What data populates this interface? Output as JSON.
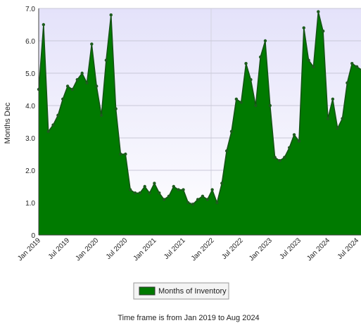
{
  "chart_data": {
    "type": "area",
    "y_label": "Months Dec",
    "caption": "Time frame is from Jan 2019 to Aug 2024",
    "categories": [
      "Jan 2019",
      null,
      null,
      null,
      null,
      null,
      "Jul 2019",
      null,
      null,
      null,
      null,
      null,
      "Jan 2020",
      null,
      null,
      null,
      null,
      null,
      "Jul 2020",
      null,
      null,
      null,
      null,
      null,
      "Jan 2021",
      null,
      null,
      null,
      null,
      null,
      "Jul 2021",
      null,
      null,
      null,
      null,
      null,
      "Jan 2022",
      null,
      null,
      null,
      null,
      null,
      "Jul 2022",
      null,
      null,
      null,
      null,
      null,
      "Jan 2023",
      null,
      null,
      null,
      null,
      null,
      "Jul 2023",
      null,
      null,
      null,
      null,
      null,
      "Jan 2024",
      null,
      null,
      null,
      null,
      null,
      "Jul 2024",
      null
    ],
    "series": [
      {
        "name": "Months of Inventory",
        "color": "#007a00",
        "values": [
          4.5,
          6.5,
          3.2,
          3.4,
          3.7,
          4.2,
          4.6,
          4.5,
          4.8,
          5.0,
          4.7,
          5.9,
          4.6,
          3.7,
          5.4,
          6.8,
          3.9,
          2.5,
          2.5,
          1.4,
          1.3,
          1.3,
          1.5,
          1.3,
          1.6,
          1.3,
          1.1,
          1.2,
          1.5,
          1.4,
          1.4,
          1.0,
          0.95,
          1.1,
          1.2,
          1.1,
          1.4,
          1.0,
          1.6,
          2.6,
          3.2,
          4.2,
          4.1,
          5.3,
          4.8,
          4.0,
          5.5,
          6.0,
          4.0,
          2.4,
          2.3,
          2.4,
          2.7,
          3.1,
          2.9,
          6.4,
          5.4,
          5.2,
          6.9,
          6.3,
          3.6,
          4.2,
          3.3,
          3.6,
          4.7,
          5.3,
          5.2,
          5.1
        ]
      }
    ],
    "ylim": [
      0,
      7
    ],
    "yticks": [
      0,
      {
        "value": 1,
        "label": "1.0"
      },
      {
        "value": 2,
        "label": "2.0"
      },
      {
        "value": 3,
        "label": "3.0"
      },
      {
        "value": 4,
        "label": "4.0"
      },
      {
        "value": 5,
        "label": "5.0"
      },
      {
        "value": 6,
        "label": "6.0"
      },
      {
        "value": 7,
        "label": "7.0"
      }
    ],
    "grid": true
  }
}
